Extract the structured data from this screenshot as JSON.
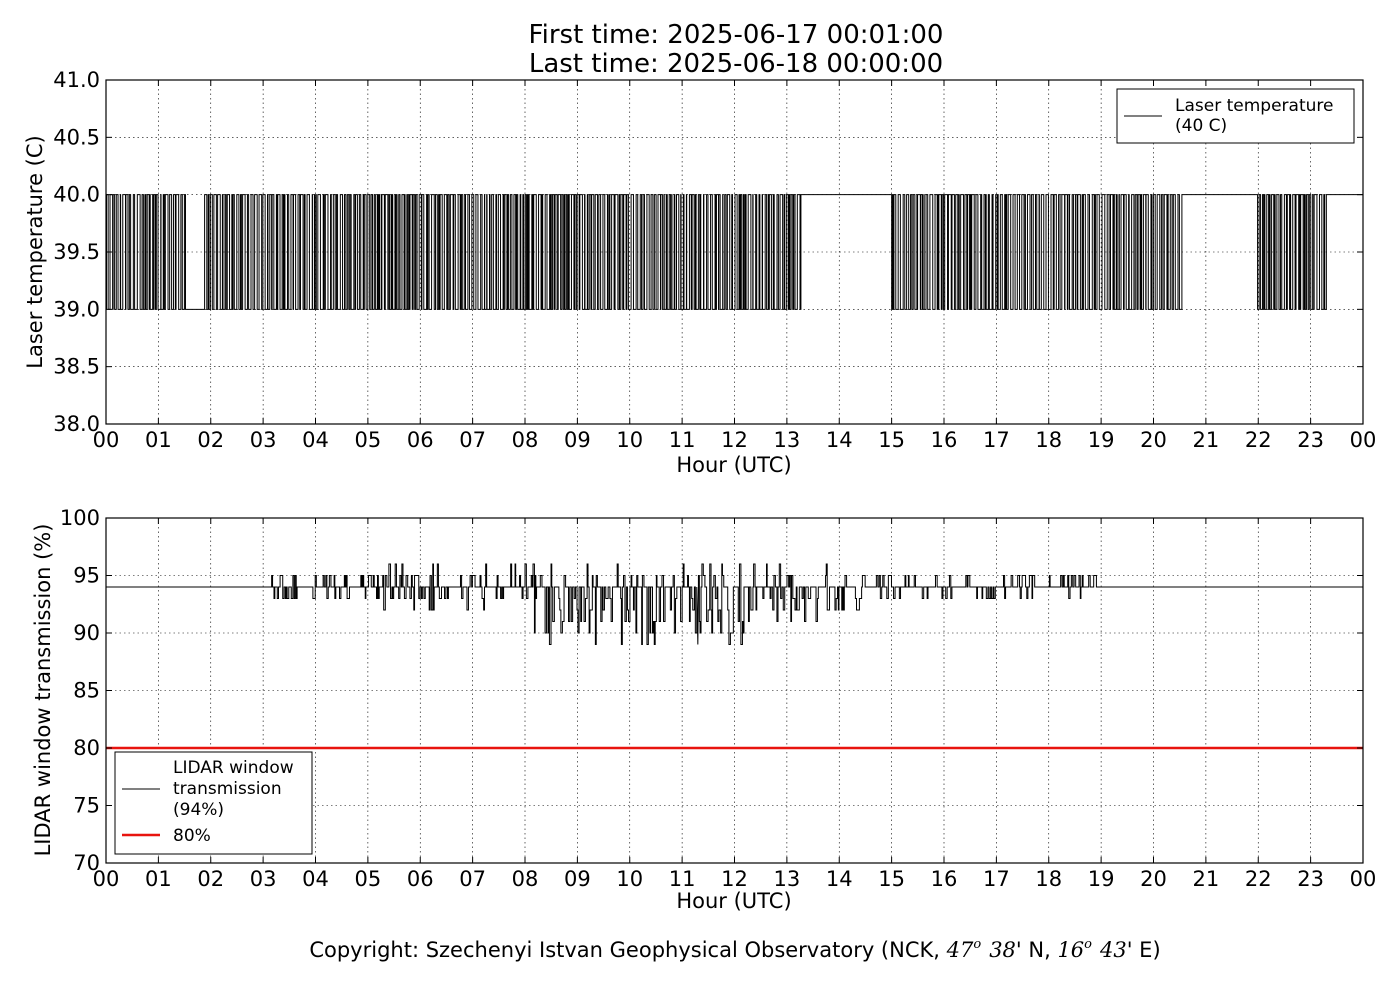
{
  "figure": {
    "title_line1": "First time: 2025-06-17 00:01:00",
    "title_line2": "Last time: 2025-06-18 00:00:00",
    "copyright": {
      "prefix": "Copyright: Szechenyi Istvan Geophysical Observatory (NCK, ",
      "lat_deg": "47",
      "deg_sym": "o",
      "lat_min": "38",
      "lat_suffix": "' N, ",
      "lon_deg": "16",
      "lon_min": "43",
      "lon_suffix": "' E)"
    }
  },
  "chart_data": [
    {
      "type": "line",
      "xlabel": "Hour (UTC)",
      "ylabel": "Laser temperature (C)",
      "xlim": [
        0,
        24
      ],
      "ylim": [
        38.0,
        41.0
      ],
      "x_ticks": [
        0,
        1,
        2,
        3,
        4,
        5,
        6,
        7,
        8,
        9,
        10,
        11,
        12,
        13,
        14,
        15,
        16,
        17,
        18,
        19,
        20,
        21,
        22,
        23,
        24
      ],
      "x_tick_labels": [
        "00",
        "01",
        "02",
        "03",
        "04",
        "05",
        "06",
        "07",
        "08",
        "09",
        "10",
        "11",
        "12",
        "13",
        "14",
        "15",
        "16",
        "17",
        "18",
        "19",
        "20",
        "21",
        "22",
        "23",
        "00"
      ],
      "y_ticks": [
        38.0,
        38.5,
        39.0,
        39.5,
        40.0,
        40.5,
        41.0
      ],
      "y_tick_labels": [
        "38.0",
        "38.5",
        "39.0",
        "39.5",
        "40.0",
        "40.5",
        "41.0"
      ],
      "grid": true,
      "legend": {
        "position": "top-right",
        "entries": [
          {
            "label": "Laser temperature\n(40 C)",
            "color": "#000000"
          }
        ]
      },
      "series": [
        {
          "name": "Laser temperature\n(40 C)",
          "color": "#000000",
          "levels": [
            39.0,
            40.0
          ],
          "segments": [
            {
              "start": 0.0,
              "end": 1.55,
              "state": "toggle"
            },
            {
              "start": 1.55,
              "end": 1.85,
              "state": "low"
            },
            {
              "start": 1.85,
              "end": 13.3,
              "state": "toggle"
            },
            {
              "start": 13.3,
              "end": 14.95,
              "state": "high"
            },
            {
              "start": 14.95,
              "end": 20.55,
              "state": "toggle"
            },
            {
              "start": 20.55,
              "end": 21.95,
              "state": "high"
            },
            {
              "start": 21.95,
              "end": 23.3,
              "state": "toggle"
            },
            {
              "start": 23.3,
              "end": 24.0,
              "state": "high"
            }
          ]
        }
      ]
    },
    {
      "type": "line",
      "xlabel": "Hour (UTC)",
      "ylabel": "LIDAR window transmission (%)",
      "xlim": [
        0,
        24
      ],
      "ylim": [
        70,
        100
      ],
      "x_ticks": [
        0,
        1,
        2,
        3,
        4,
        5,
        6,
        7,
        8,
        9,
        10,
        11,
        12,
        13,
        14,
        15,
        16,
        17,
        18,
        19,
        20,
        21,
        22,
        23,
        24
      ],
      "x_tick_labels": [
        "00",
        "01",
        "02",
        "03",
        "04",
        "05",
        "06",
        "07",
        "08",
        "09",
        "10",
        "11",
        "12",
        "13",
        "14",
        "15",
        "16",
        "17",
        "18",
        "19",
        "20",
        "21",
        "22",
        "23",
        "00"
      ],
      "y_ticks": [
        70,
        75,
        80,
        85,
        90,
        95,
        100
      ],
      "y_tick_labels": [
        "70",
        "75",
        "80",
        "85",
        "90",
        "95",
        "100"
      ],
      "grid": true,
      "legend": {
        "position": "lower-left",
        "entries": [
          {
            "label": "LIDAR window\ntransmission\n(94%)",
            "color": "#000000"
          },
          {
            "label": "80%",
            "color": "#e8140f"
          }
        ]
      },
      "series": [
        {
          "name": "LIDAR window\ntransmission\n(94%)",
          "color": "#000000",
          "baseline": 94,
          "noise_envelope": [
            {
              "start": 0.0,
              "end": 3.15,
              "min": 94,
              "max": 94
            },
            {
              "start": 3.15,
              "end": 5.2,
              "min": 93,
              "max": 95
            },
            {
              "start": 5.2,
              "end": 8.0,
              "min": 92,
              "max": 96
            },
            {
              "start": 8.0,
              "end": 12.2,
              "min": 89,
              "max": 96
            },
            {
              "start": 12.2,
              "end": 14.5,
              "min": 91,
              "max": 96
            },
            {
              "start": 14.5,
              "end": 19.0,
              "min": 93,
              "max": 95
            },
            {
              "start": 19.0,
              "end": 24.0,
              "min": 94,
              "max": 94
            }
          ],
          "min_value": {
            "x": 11.3,
            "y": 89
          },
          "max_value": 96
        },
        {
          "name": "80%",
          "color": "#e8140f",
          "constant": 80
        }
      ]
    }
  ]
}
